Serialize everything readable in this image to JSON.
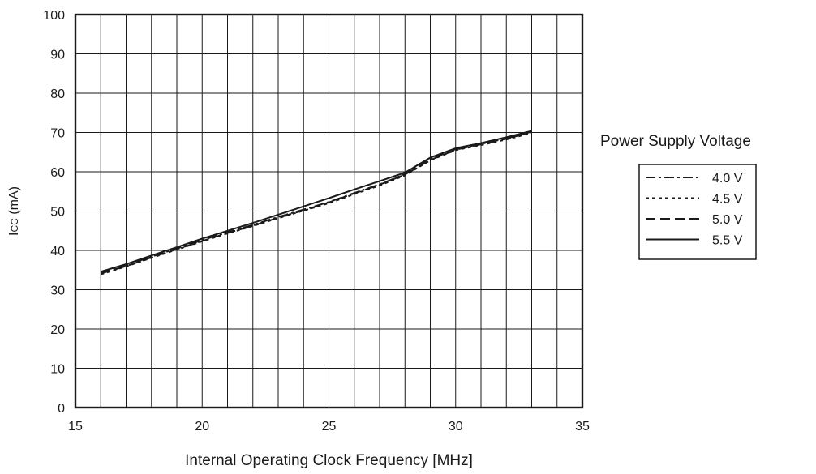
{
  "chart_data": {
    "type": "line",
    "title": "",
    "xlabel": "Internal Operating Clock Frequency [MHz]",
    "ylabel_main": "I",
    "ylabel_sub": "CC",
    "ylabel_unit": " (mA)",
    "xlim": [
      15,
      35
    ],
    "ylim": [
      0,
      100
    ],
    "xticks": [
      15,
      20,
      25,
      30,
      35
    ],
    "yticks": [
      0,
      10,
      20,
      30,
      40,
      50,
      60,
      70,
      80,
      90,
      100
    ],
    "grid": true,
    "legend_title": "Power Supply Voltage",
    "legend_position": "right",
    "series": [
      {
        "name": "4.0 V",
        "style": "dashdot",
        "x": [
          16,
          17,
          18,
          19,
          20,
          21,
          22,
          23,
          24,
          25,
          26,
          27,
          28,
          29,
          30,
          31,
          32,
          33
        ],
        "y": [
          34.3,
          36.2,
          38.4,
          40.5,
          42.6,
          44.6,
          46.5,
          48.5,
          50.4,
          52.3,
          54.6,
          56.8,
          59.4,
          63.2,
          65.8,
          67.1,
          68.5,
          70.2
        ]
      },
      {
        "name": "4.5 V",
        "style": "dotted",
        "x": [
          16,
          17,
          18,
          19,
          20,
          21,
          22,
          23,
          24,
          25,
          26,
          27,
          28,
          29,
          30,
          31,
          32,
          33
        ],
        "y": [
          33.9,
          35.9,
          38.1,
          40.2,
          42.3,
          44.3,
          46.2,
          48.2,
          50.1,
          52.0,
          54.3,
          56.5,
          59.1,
          62.9,
          65.5,
          66.8,
          68.2,
          69.9
        ]
      },
      {
        "name": "5.0 V",
        "style": "dashed",
        "x": [
          16,
          17,
          18,
          19,
          20,
          21,
          22,
          23,
          24,
          25,
          26,
          27,
          28,
          29,
          30,
          31,
          32,
          33
        ],
        "y": [
          34.1,
          36.0,
          38.2,
          40.3,
          42.4,
          44.4,
          46.3,
          48.3,
          50.2,
          52.2,
          54.5,
          56.7,
          59.3,
          63.0,
          65.6,
          67.0,
          68.4,
          70.1
        ]
      },
      {
        "name": "5.5 V",
        "style": "solid",
        "x": [
          16,
          17,
          18,
          19,
          20,
          21,
          22,
          23,
          24,
          25,
          26,
          27,
          28,
          29,
          30,
          31,
          32,
          33
        ],
        "y": [
          34.6,
          36.5,
          38.7,
          40.8,
          43.0,
          45.0,
          47.0,
          49.1,
          51.2,
          53.3,
          55.5,
          57.6,
          59.8,
          63.6,
          66.0,
          67.3,
          68.8,
          70.4
        ]
      }
    ]
  }
}
